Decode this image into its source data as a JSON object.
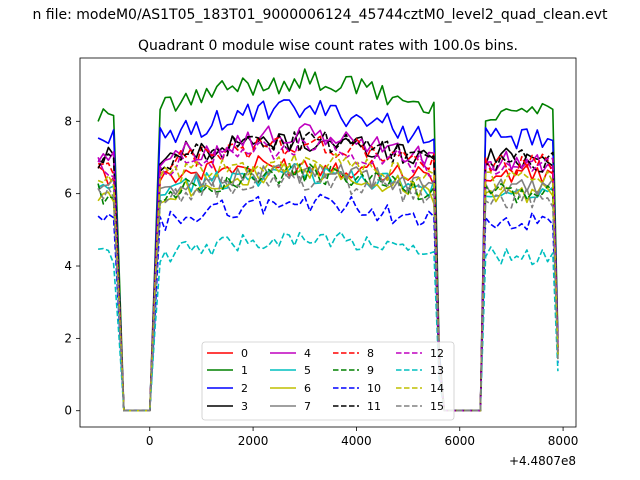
{
  "chart_data": {
    "type": "line",
    "suptitle": "n file: modeM0/AS1T05_183T01_9000006124_45744cztM0_level2_quad_clean.evt",
    "title": "Quadrant 0 module wise count rates with 100.0s bins.",
    "xlabel": "",
    "ylabel": "",
    "x_offset_label": "+4.4807e8",
    "xlim": [
      -1350,
      8250
    ],
    "ylim": [
      -0.45,
      9.75
    ],
    "xticks": [
      0,
      2000,
      4000,
      6000,
      8000
    ],
    "xtick_labels": [
      "0",
      "2000",
      "4000",
      "6000",
      "8000"
    ],
    "yticks": [
      0,
      2,
      4,
      6,
      8
    ],
    "ytick_labels": [
      "0",
      "2",
      "4",
      "6",
      "8"
    ],
    "grid": false,
    "legend_position": "lower center",
    "legend_columns": 4,
    "profile": {
      "x": [
        -1000,
        -900,
        -800,
        -700,
        -600,
        -500,
        -400,
        -300,
        -200,
        -100,
        0,
        100,
        200,
        300,
        400,
        500,
        600,
        700,
        800,
        900,
        1000,
        1100,
        1200,
        1300,
        1400,
        1500,
        1600,
        1700,
        1800,
        1900,
        2000,
        2100,
        2200,
        2300,
        2400,
        2500,
        2600,
        2700,
        2800,
        2900,
        3000,
        3100,
        3200,
        3300,
        3400,
        3500,
        3600,
        3700,
        3800,
        3900,
        4000,
        4100,
        4200,
        4300,
        4400,
        4500,
        4600,
        4700,
        4800,
        4900,
        5000,
        5100,
        5200,
        5300,
        5400,
        5500,
        5600,
        5700,
        5800,
        5900,
        6000,
        6100,
        6200,
        6300,
        6400,
        6500,
        6600,
        6700,
        6800,
        6900,
        7000,
        7100,
        7200,
        7300,
        7400,
        7500,
        7600,
        7700,
        7800,
        7900
      ],
      "shape": [
        1,
        1,
        1,
        1,
        0.5,
        0,
        0,
        0,
        0,
        0,
        0,
        0.5,
        1,
        1,
        1,
        1,
        1,
        1,
        1,
        1,
        1,
        1,
        1,
        1,
        1,
        1,
        1,
        1,
        1,
        1,
        1,
        1,
        1,
        1,
        1,
        1,
        1,
        1,
        1,
        1,
        1,
        1,
        1,
        1,
        1,
        1,
        1,
        1,
        1,
        1,
        1,
        1,
        1,
        1,
        1,
        1,
        1,
        1,
        1,
        1,
        1,
        1,
        1,
        1,
        1,
        1,
        0.2,
        0,
        0,
        0,
        0,
        0,
        0,
        0,
        0,
        1,
        1,
        1,
        1,
        1,
        1,
        1,
        1,
        1,
        1,
        1,
        1,
        1,
        1,
        0.25
      ],
      "note": "shape = fraction of module rate present in each bin"
    },
    "series": [
      {
        "name": "0",
        "color": "#ff0000",
        "dash": "solid",
        "level": 6.5,
        "trend": 0.3
      },
      {
        "name": "1",
        "color": "#008000",
        "dash": "solid",
        "level": 8.3,
        "trend": 0.9
      },
      {
        "name": "2",
        "color": "#0000ff",
        "dash": "solid",
        "level": 7.5,
        "trend": 0.9
      },
      {
        "name": "3",
        "color": "#000000",
        "dash": "solid",
        "level": 7.0,
        "trend": 0.5
      },
      {
        "name": "4",
        "color": "#bf00bf",
        "dash": "solid",
        "level": 6.9,
        "trend": 0.8
      },
      {
        "name": "5",
        "color": "#00bfbf",
        "dash": "solid",
        "level": 6.1,
        "trend": 0.5
      },
      {
        "name": "6",
        "color": "#bfbf00",
        "dash": "solid",
        "level": 6.0,
        "trend": 0.6
      },
      {
        "name": "7",
        "color": "#808080",
        "dash": "solid",
        "level": 6.2,
        "trend": 0.4
      },
      {
        "name": "8",
        "color": "#ff0000",
        "dash": "dashed",
        "level": 6.8,
        "trend": 0.6
      },
      {
        "name": "9",
        "color": "#008000",
        "dash": "dashed",
        "level": 6.0,
        "trend": 0.6
      },
      {
        "name": "10",
        "color": "#0000ff",
        "dash": "dashed",
        "level": 5.2,
        "trend": 0.6
      },
      {
        "name": "11",
        "color": "#000000",
        "dash": "dashed",
        "level": 6.9,
        "trend": 0.6
      },
      {
        "name": "12",
        "color": "#bf00bf",
        "dash": "dashed",
        "level": 6.7,
        "trend": 0.6
      },
      {
        "name": "13",
        "color": "#00bfbf",
        "dash": "dashed",
        "level": 4.3,
        "trend": 0.5
      },
      {
        "name": "14",
        "color": "#bfbf00",
        "dash": "dashed",
        "level": 6.4,
        "trend": 0.5
      },
      {
        "name": "15",
        "color": "#808080",
        "dash": "dashed",
        "level": 5.9,
        "trend": 0.5
      }
    ]
  }
}
